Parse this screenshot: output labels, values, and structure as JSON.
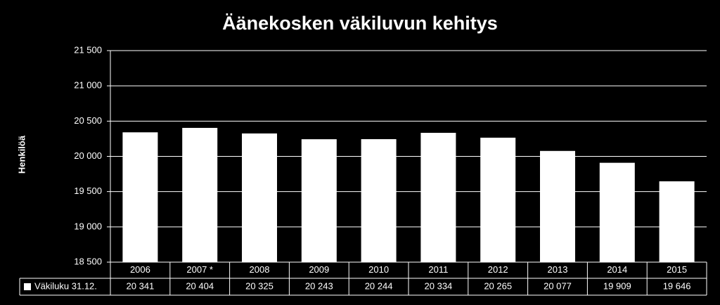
{
  "chart_data": {
    "type": "bar",
    "title": "Äänekosken väkiluvun kehitys",
    "y_label": "Henkilöä",
    "categories": [
      "2006",
      "2007 *",
      "2008",
      "2009",
      "2010",
      "2011",
      "2012",
      "2013",
      "2014",
      "2015"
    ],
    "series": [
      {
        "name": "Väkiluku 31.12.",
        "color": "#ffffff",
        "values": [
          20341,
          20404,
          20325,
          20243,
          20244,
          20334,
          20265,
          20077,
          19909,
          19646
        ],
        "value_labels": [
          "20 341",
          "20 404",
          "20 325",
          "20 243",
          "20 244",
          "20 334",
          "20 265",
          "20 077",
          "19 909",
          "19 646"
        ]
      }
    ],
    "ylim": [
      18500,
      21500
    ],
    "yticks": [
      {
        "value": 18500,
        "label": "18 500"
      },
      {
        "value": 19000,
        "label": "19 000"
      },
      {
        "value": 19500,
        "label": "19 500"
      },
      {
        "value": 20000,
        "label": "20 000"
      },
      {
        "value": 20500,
        "label": "20 500"
      },
      {
        "value": 21000,
        "label": "21 000"
      },
      {
        "value": 21500,
        "label": "21 500"
      }
    ],
    "grid": true
  }
}
